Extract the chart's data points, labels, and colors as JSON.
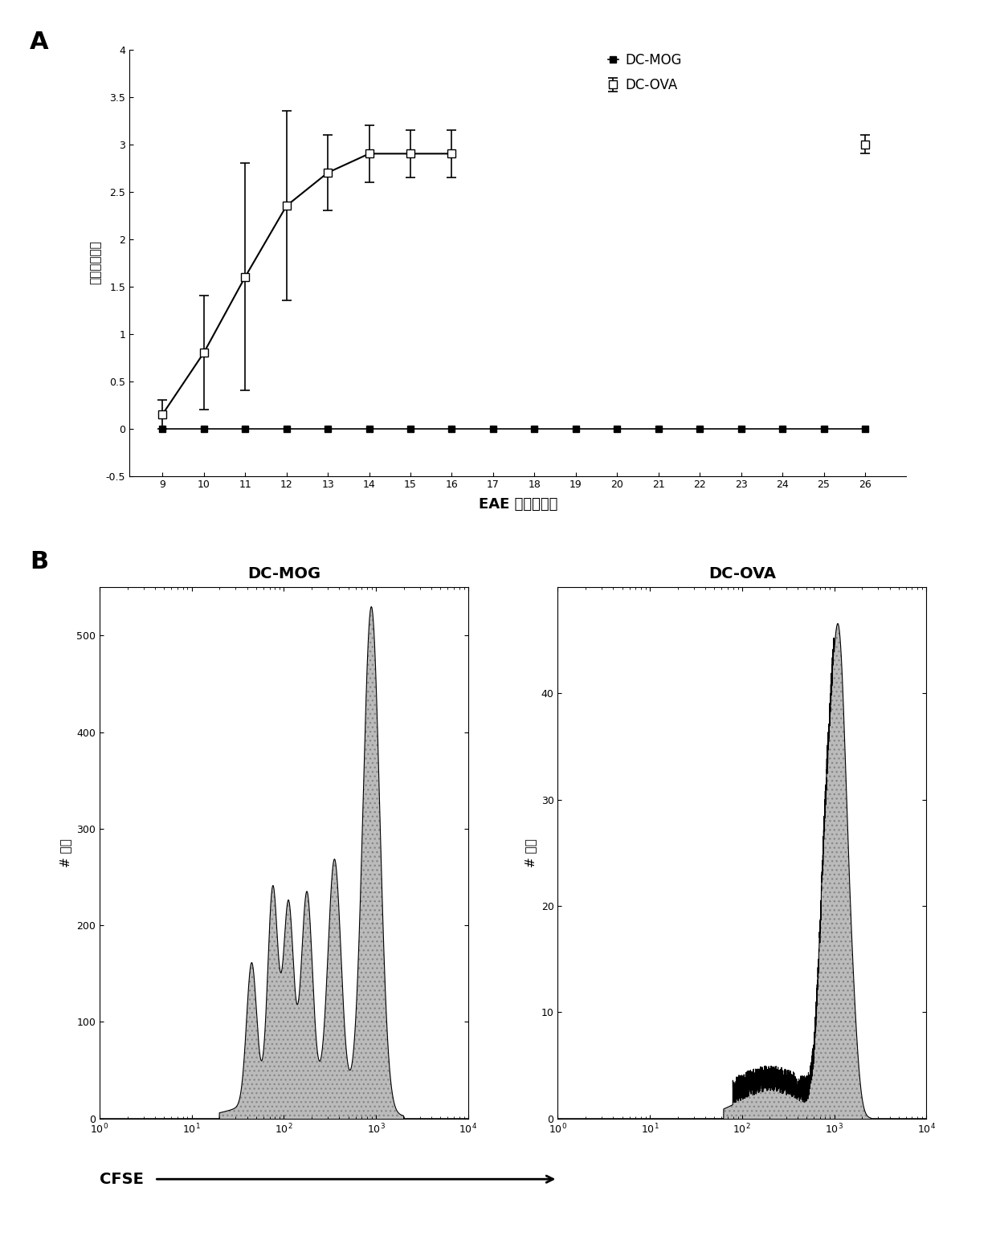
{
  "panel_a": {
    "xlabel": "EAE 诱导后天数",
    "ylabel": "平均临床评分",
    "ylim": [
      -0.5,
      4.0
    ],
    "days_all": [
      9,
      10,
      11,
      12,
      13,
      14,
      15,
      16,
      17,
      18,
      19,
      20,
      21,
      22,
      23,
      24,
      25,
      26
    ],
    "dc_mog_values": [
      0,
      0,
      0,
      0,
      0,
      0,
      0,
      0,
      0,
      0,
      0,
      0,
      0,
      0,
      0,
      0,
      0,
      0
    ],
    "dc_mog_errors": [
      0,
      0,
      0,
      0,
      0,
      0,
      0,
      0,
      0,
      0,
      0,
      0,
      0,
      0,
      0,
      0,
      0,
      0
    ],
    "dc_ova_days": [
      9,
      10,
      11,
      12,
      13,
      14,
      15,
      16,
      26
    ],
    "dc_ova_values": [
      0.15,
      0.8,
      1.6,
      2.35,
      2.7,
      2.9,
      2.9,
      2.9,
      3.0
    ],
    "dc_ova_errors": [
      0.15,
      0.6,
      1.2,
      1.0,
      0.4,
      0.3,
      0.25,
      0.25,
      0.1
    ],
    "legend_dc_mog": "DC-MOG",
    "legend_dc_ova": "DC-OVA"
  },
  "panel_b": {
    "left_title": "DC-MOG",
    "right_title": "DC-OVA",
    "xlabel": "CFSE",
    "ylabel_left": "# 细胞",
    "ylabel_right": "# 细胞",
    "left_ylim": [
      0,
      550
    ],
    "right_ylim": [
      0,
      50
    ],
    "left_yticks": [
      0,
      100,
      200,
      300,
      400,
      500
    ],
    "right_yticks": [
      0,
      10,
      20,
      30,
      40
    ],
    "fill_color": "#bbbbbb",
    "line_color": "#000000",
    "hatch": "..."
  }
}
